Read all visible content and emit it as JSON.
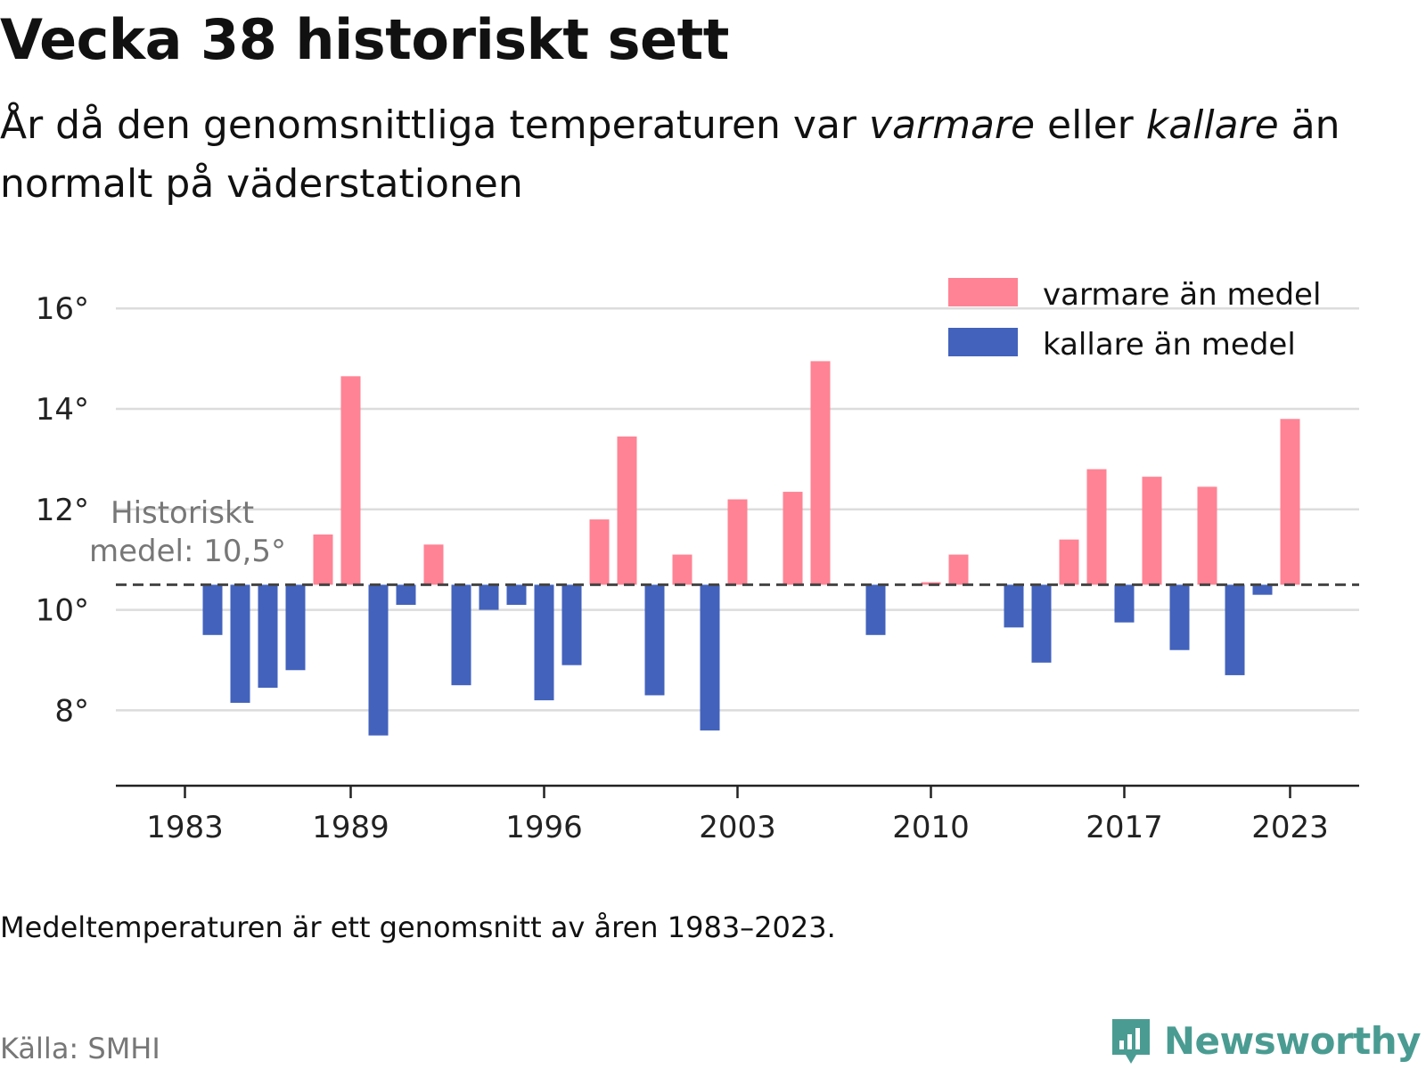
{
  "header": {
    "title": "Vecka 38 historiskt sett",
    "subtitle_part1": "År då den genomsnittliga temperaturen var ",
    "subtitle_warm": "varmare",
    "subtitle_part2": " eller ",
    "subtitle_cold": "kallare",
    "subtitle_part3": " än normalt på väderstationen"
  },
  "chart_data": {
    "type": "bar",
    "baseline": 10.5,
    "baseline_label_line1": "Historiskt",
    "baseline_label_line2": "medel: 10,5°",
    "ylim": [
      6.5,
      16.5
    ],
    "y_ticks": [
      8,
      10,
      12,
      14,
      16
    ],
    "y_tick_labels": [
      "8°",
      "10°",
      "12°",
      "14°",
      "16°"
    ],
    "x_ticks": [
      1983,
      1989,
      1996,
      2003,
      2010,
      2017,
      2023
    ],
    "x_tick_labels": [
      "1983",
      "1989",
      "1996",
      "2003",
      "2010",
      "2017",
      "2023"
    ],
    "xlim": [
      1980.5,
      2025.5
    ],
    "colors": {
      "warm": "#ff8394",
      "cold": "#4262bc",
      "grid": "#dcdcdc",
      "baseline": "#444444"
    },
    "legend": {
      "position": "top-right",
      "warm_label": "varmare än medel",
      "cold_label": "kallare än medel"
    },
    "grid": true,
    "years": [
      1984,
      1985,
      1986,
      1987,
      1988,
      1989,
      1990,
      1991,
      1992,
      1993,
      1994,
      1995,
      1996,
      1997,
      1998,
      1999,
      2000,
      2001,
      2002,
      2003,
      2005,
      2006,
      2008,
      2010,
      2011,
      2013,
      2014,
      2015,
      2016,
      2017,
      2018,
      2019,
      2020,
      2021,
      2022,
      2023
    ],
    "values": [
      9.5,
      8.15,
      8.45,
      8.8,
      11.5,
      14.65,
      7.5,
      10.1,
      11.3,
      8.5,
      10.0,
      10.1,
      8.2,
      8.9,
      11.8,
      13.45,
      8.3,
      11.1,
      7.6,
      12.2,
      12.35,
      14.95,
      9.5,
      10.55,
      11.1,
      9.65,
      8.95,
      11.4,
      12.8,
      9.75,
      12.65,
      9.2,
      12.45,
      8.7,
      10.3,
      13.8
    ]
  },
  "footer": {
    "note": "Medeltemperaturen är ett genomsnitt av åren 1983–2023.",
    "source": "Källa: SMHI",
    "brand": "Newsworthy"
  }
}
